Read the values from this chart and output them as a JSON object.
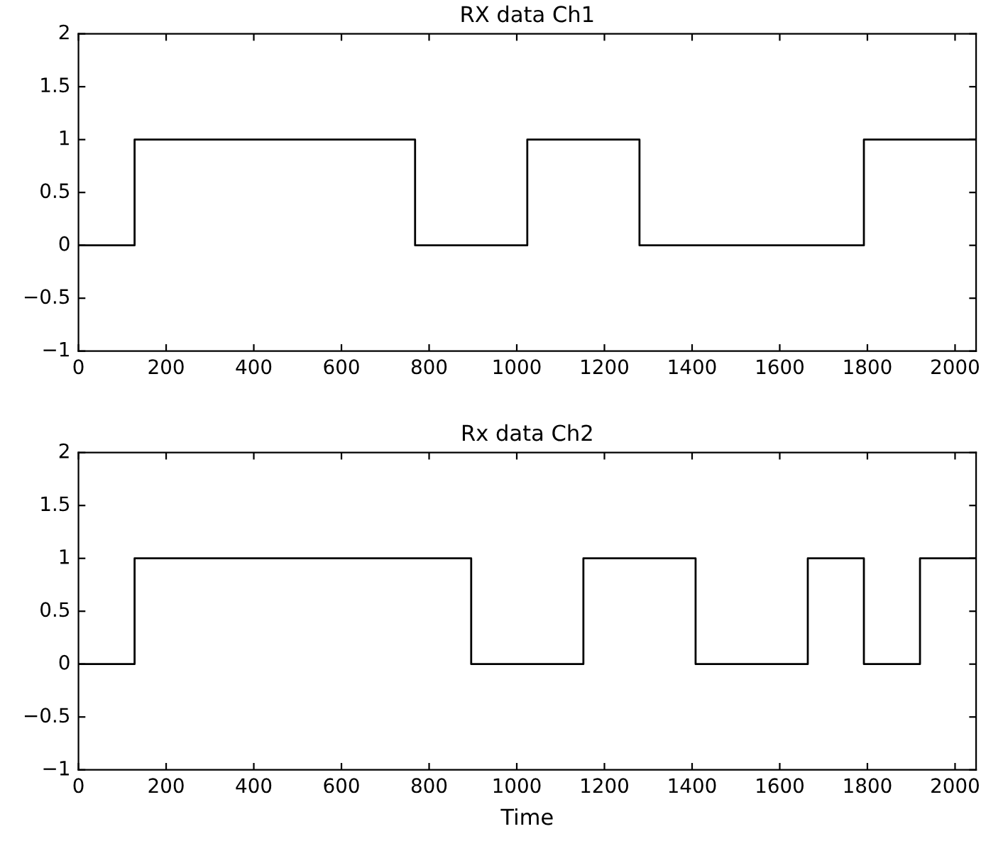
{
  "chart_data": [
    {
      "type": "step",
      "title": "RX data Ch1",
      "series": [
        {
          "color": "#000000",
          "x": [
            0,
            128,
            768,
            1024,
            1280,
            1792,
            2048
          ],
          "values": [
            0,
            1,
            0,
            1,
            0,
            1,
            1
          ]
        }
      ],
      "xlim": [
        0,
        2048
      ],
      "xticks": [
        0,
        200,
        400,
        600,
        800,
        1000,
        1200,
        1400,
        1600,
        1800,
        2000
      ],
      "ylim": [
        -1,
        2
      ],
      "yticks": [
        -1,
        -0.5,
        0,
        0.5,
        1,
        1.5,
        2
      ]
    },
    {
      "type": "step",
      "title": "Rx data Ch2",
      "xlabel": "Time",
      "series": [
        {
          "color": "#000000",
          "x": [
            0,
            128,
            896,
            1152,
            1408,
            1664,
            1792,
            1920,
            2048
          ],
          "values": [
            0,
            1,
            0,
            1,
            0,
            1,
            0,
            1,
            1
          ]
        }
      ],
      "xlim": [
        0,
        2048
      ],
      "xticks": [
        0,
        200,
        400,
        600,
        800,
        1000,
        1200,
        1400,
        1600,
        1800,
        2000
      ],
      "ylim": [
        -1,
        2
      ],
      "yticks": [
        -1,
        -0.5,
        0,
        0.5,
        1,
        1.5,
        2
      ]
    }
  ]
}
